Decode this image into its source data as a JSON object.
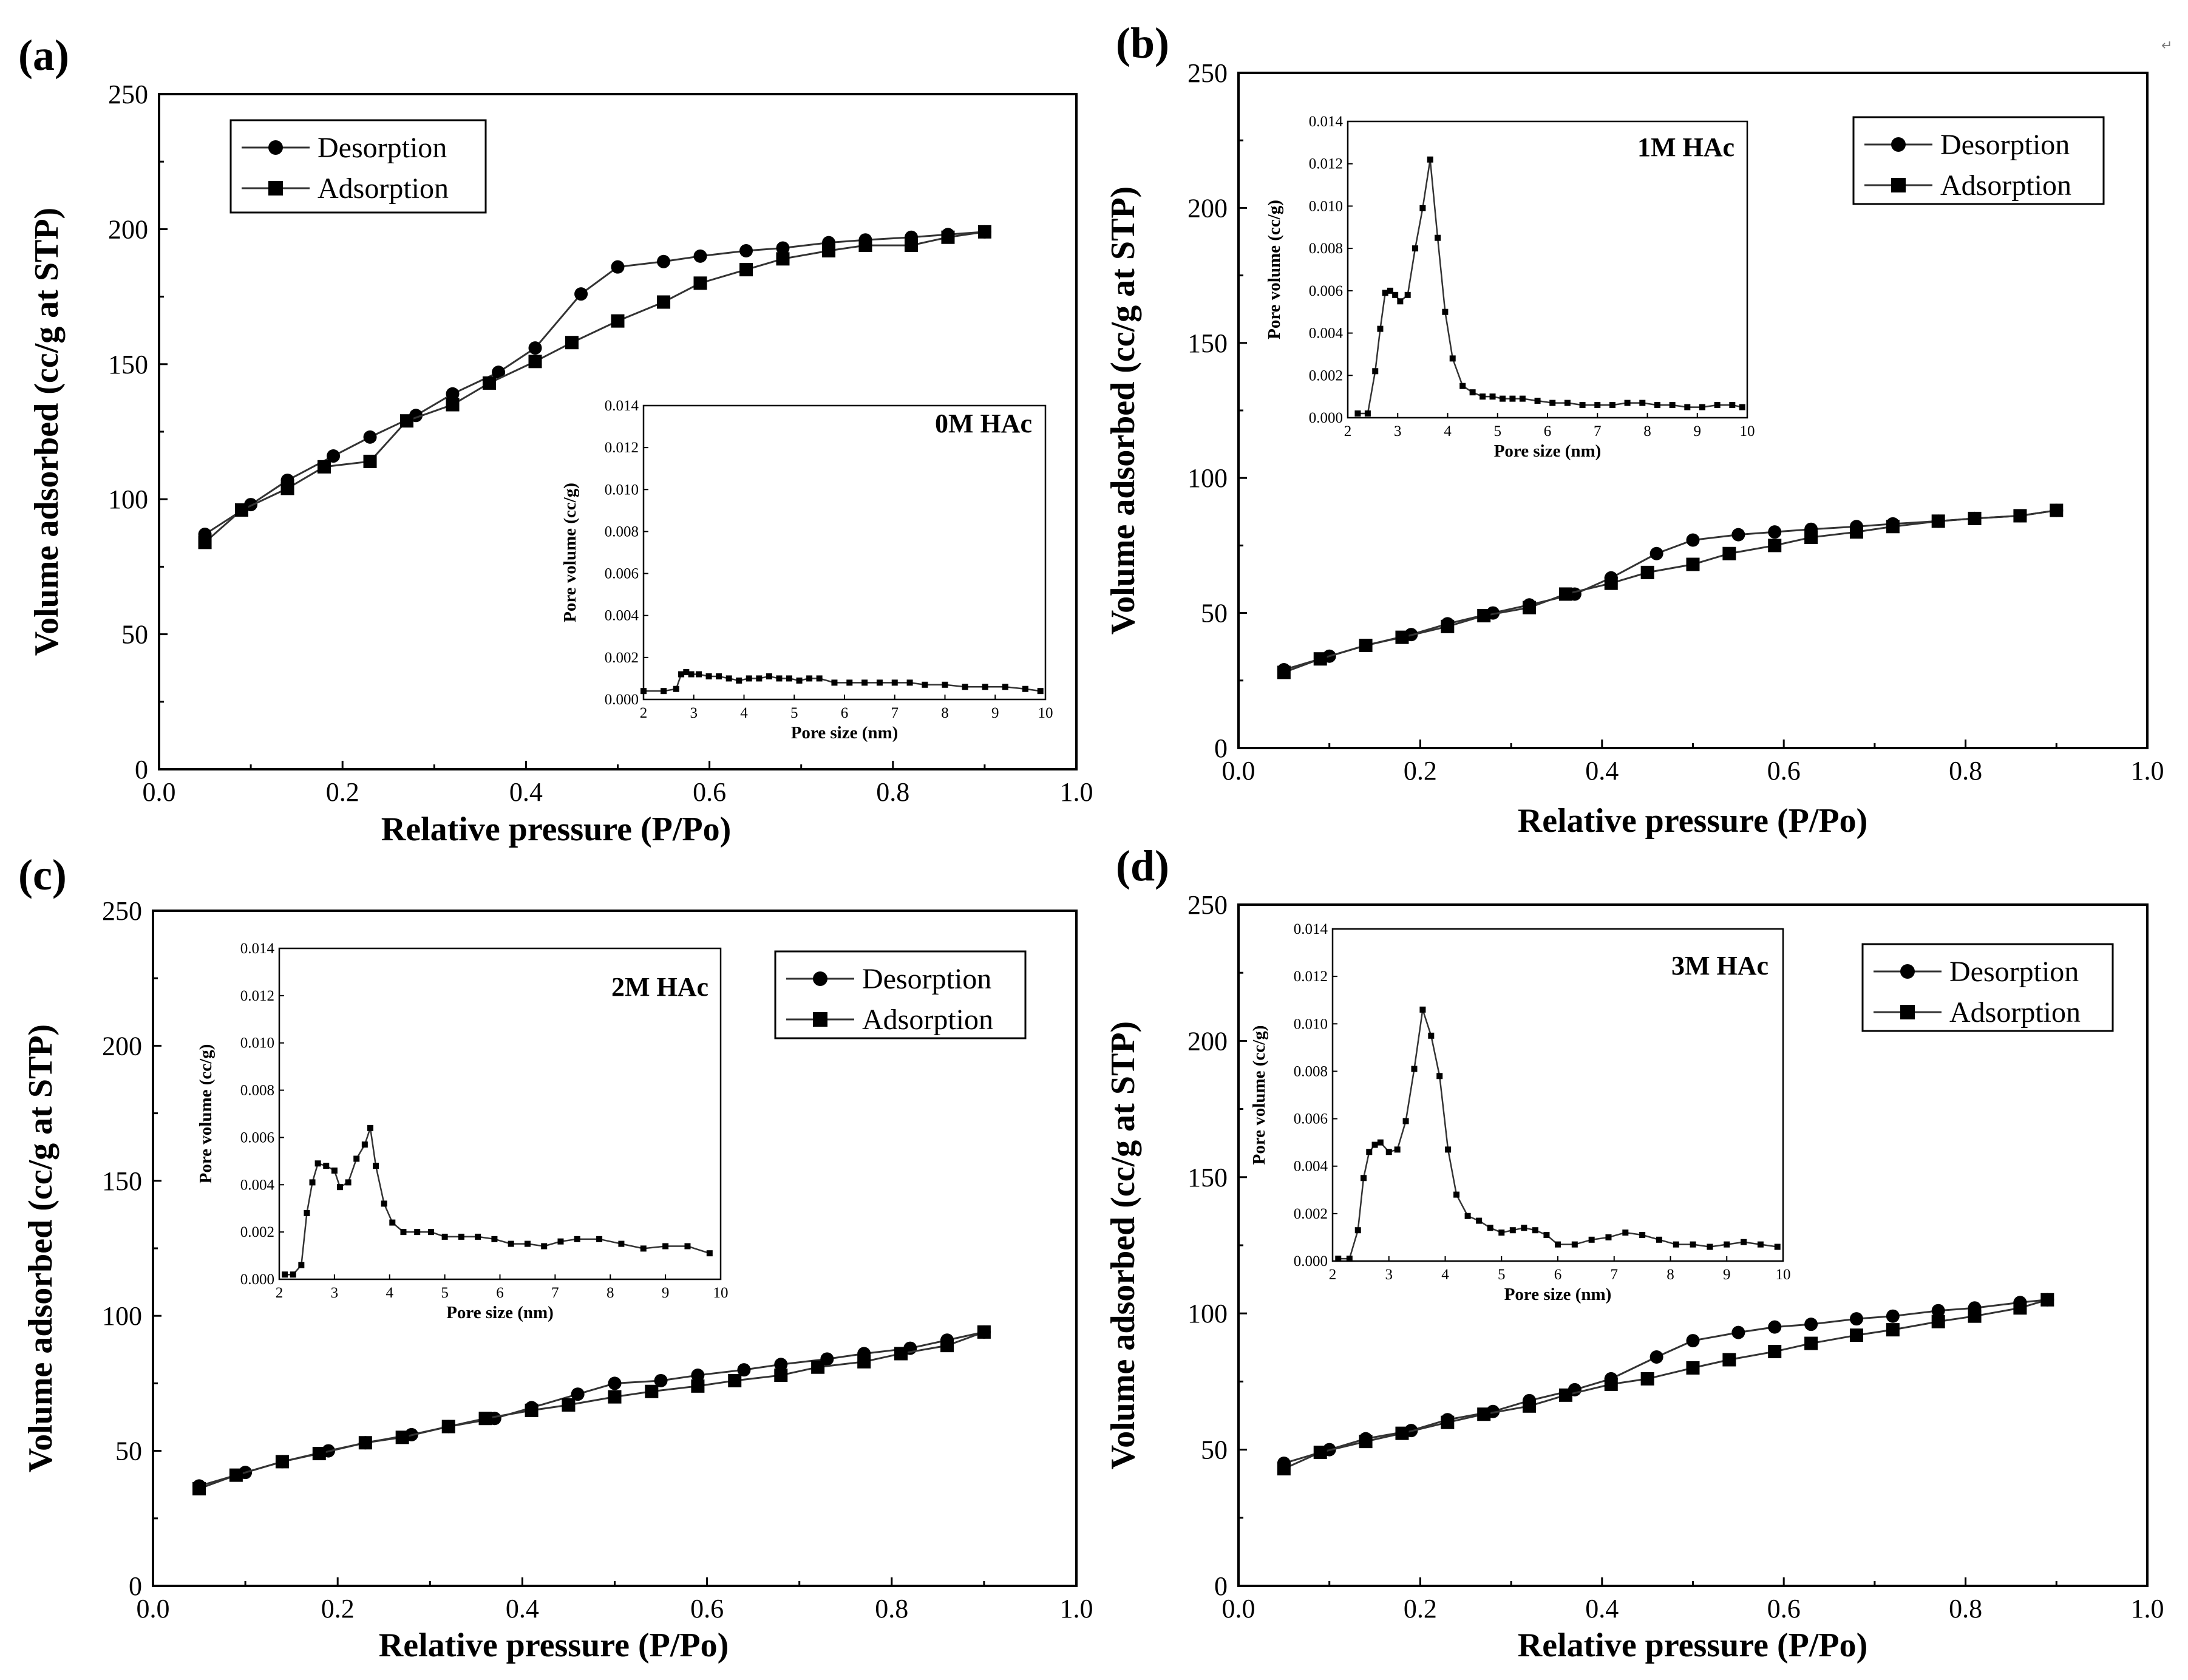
{
  "corner_mark": "↵",
  "chart_data": [
    {
      "type": "line",
      "panel_label": "(a)",
      "xlabel": "Relative pressure (P/Po)",
      "ylabel": "Volume adsorbed (cc/g at STP)",
      "xlim": [
        0.0,
        1.0
      ],
      "ylim": [
        0,
        250
      ],
      "x_ticks": [
        "0.0",
        "0.2",
        "0.4",
        "0.6",
        "0.8",
        "1.0"
      ],
      "y_ticks": [
        "0",
        "50",
        "100",
        "150",
        "200",
        "250"
      ],
      "legend_position": "top-left",
      "series": [
        {
          "name": "Desorption",
          "marker": "circle",
          "x": [
            0.05,
            0.1,
            0.14,
            0.19,
            0.23,
            0.28,
            0.32,
            0.37,
            0.41,
            0.46,
            0.5,
            0.55,
            0.59,
            0.64,
            0.68,
            0.73,
            0.77,
            0.82,
            0.86,
            0.9
          ],
          "y": [
            87,
            98,
            107,
            116,
            123,
            131,
            139,
            147,
            156,
            176,
            186,
            188,
            190,
            192,
            193,
            195,
            196,
            197,
            198,
            199
          ]
        },
        {
          "name": "Adsorption",
          "marker": "square",
          "x": [
            0.05,
            0.09,
            0.14,
            0.18,
            0.23,
            0.27,
            0.32,
            0.36,
            0.41,
            0.45,
            0.5,
            0.55,
            0.59,
            0.64,
            0.68,
            0.73,
            0.77,
            0.82,
            0.86,
            0.9
          ],
          "y": [
            84,
            96,
            104,
            112,
            114,
            129,
            135,
            143,
            151,
            158,
            166,
            173,
            180,
            185,
            189,
            192,
            194,
            194,
            197,
            199
          ]
        }
      ],
      "inset": {
        "label": "0M HAc",
        "xlabel": "Pore size (nm)",
        "ylabel": "Pore volume (cc/g)",
        "xlim": [
          2,
          10
        ],
        "ylim": [
          0,
          0.014
        ],
        "x_ticks": [
          "2",
          "3",
          "4",
          "5",
          "6",
          "7",
          "8",
          "9",
          "10"
        ],
        "y_ticks": [
          "0.000",
          "0.002",
          "0.004",
          "0.006",
          "0.008",
          "0.010",
          "0.012",
          "0.014"
        ],
        "x": [
          2.0,
          2.4,
          2.65,
          2.75,
          2.85,
          2.95,
          3.1,
          3.3,
          3.5,
          3.7,
          3.9,
          4.1,
          4.3,
          4.5,
          4.7,
          4.9,
          5.1,
          5.3,
          5.5,
          5.8,
          6.1,
          6.4,
          6.7,
          7.0,
          7.3,
          7.6,
          8.0,
          8.4,
          8.8,
          9.2,
          9.6,
          9.9
        ],
        "y": [
          0.0004,
          0.0004,
          0.0005,
          0.0012,
          0.0013,
          0.0012,
          0.0012,
          0.0011,
          0.0011,
          0.001,
          0.0009,
          0.001,
          0.001,
          0.0011,
          0.001,
          0.001,
          0.0009,
          0.001,
          0.001,
          0.0008,
          0.0008,
          0.0008,
          0.0008,
          0.0008,
          0.0008,
          0.0007,
          0.0007,
          0.0006,
          0.0006,
          0.0006,
          0.0005,
          0.0004
        ]
      }
    },
    {
      "type": "line",
      "panel_label": "(b)",
      "xlabel": "Relative pressure (P/Po)",
      "ylabel": "Volume adsorbed (cc/g at STP)",
      "xlim": [
        0.0,
        1.0
      ],
      "ylim": [
        0,
        250
      ],
      "x_ticks": [
        "0.0",
        "0.2",
        "0.4",
        "0.6",
        "0.8",
        "1.0"
      ],
      "y_ticks": [
        "0",
        "50",
        "100",
        "150",
        "200",
        "250"
      ],
      "legend_position": "top-right",
      "series": [
        {
          "name": "Desorption",
          "marker": "circle",
          "x": [
            0.05,
            0.1,
            0.14,
            0.19,
            0.23,
            0.28,
            0.32,
            0.37,
            0.41,
            0.46,
            0.5,
            0.55,
            0.59,
            0.63,
            0.68,
            0.72,
            0.77,
            0.81,
            0.86,
            0.9
          ],
          "y": [
            29,
            34,
            38,
            42,
            46,
            50,
            53,
            57,
            63,
            72,
            77,
            79,
            80,
            81,
            82,
            83,
            84,
            85,
            86,
            88
          ]
        },
        {
          "name": "Adsorption",
          "marker": "square",
          "x": [
            0.05,
            0.09,
            0.14,
            0.18,
            0.23,
            0.27,
            0.32,
            0.36,
            0.41,
            0.45,
            0.5,
            0.54,
            0.59,
            0.63,
            0.68,
            0.72,
            0.77,
            0.81,
            0.86,
            0.9
          ],
          "y": [
            28,
            33,
            38,
            41,
            45,
            49,
            52,
            57,
            61,
            65,
            68,
            72,
            75,
            78,
            80,
            82,
            84,
            85,
            86,
            88
          ]
        }
      ],
      "inset": {
        "label": "1M HAc",
        "xlabel": "Pore size (nm)",
        "ylabel": "Pore volume (cc/g)",
        "xlim": [
          2,
          10
        ],
        "ylim": [
          0,
          0.014
        ],
        "x_ticks": [
          "2",
          "3",
          "4",
          "5",
          "6",
          "7",
          "8",
          "9",
          "10"
        ],
        "y_ticks": [
          "0.000",
          "0.002",
          "0.004",
          "0.006",
          "0.008",
          "0.010",
          "0.012",
          "0.014"
        ],
        "x": [
          2.2,
          2.4,
          2.55,
          2.65,
          2.75,
          2.85,
          2.95,
          3.05,
          3.2,
          3.35,
          3.5,
          3.65,
          3.8,
          3.95,
          4.1,
          4.3,
          4.5,
          4.7,
          4.9,
          5.1,
          5.3,
          5.5,
          5.8,
          6.1,
          6.4,
          6.7,
          7.0,
          7.3,
          7.6,
          7.9,
          8.2,
          8.5,
          8.8,
          9.1,
          9.4,
          9.7,
          9.9
        ],
        "y": [
          0.0002,
          0.0002,
          0.0022,
          0.0042,
          0.0059,
          0.006,
          0.0058,
          0.0055,
          0.0058,
          0.008,
          0.0099,
          0.0122,
          0.0085,
          0.005,
          0.0028,
          0.0015,
          0.0012,
          0.001,
          0.001,
          0.0009,
          0.0009,
          0.0009,
          0.0008,
          0.0007,
          0.0007,
          0.0006,
          0.0006,
          0.0006,
          0.0007,
          0.0007,
          0.0006,
          0.0006,
          0.0005,
          0.0005,
          0.0006,
          0.0006,
          0.0005
        ]
      }
    },
    {
      "type": "line",
      "panel_label": "(c)",
      "xlabel": "Relative pressure (P/Po)",
      "ylabel": "Volume adsorbed (cc/g at STP)",
      "xlim": [
        0.0,
        1.0
      ],
      "ylim": [
        0,
        250
      ],
      "x_ticks": [
        "0.0",
        "0.2",
        "0.4",
        "0.6",
        "0.8",
        "1.0"
      ],
      "y_ticks": [
        "0",
        "50",
        "100",
        "150",
        "200",
        "250"
      ],
      "legend_position": "top-right",
      "series": [
        {
          "name": "Desorption",
          "marker": "circle",
          "x": [
            0.05,
            0.1,
            0.14,
            0.19,
            0.23,
            0.28,
            0.32,
            0.37,
            0.41,
            0.46,
            0.5,
            0.55,
            0.59,
            0.64,
            0.68,
            0.73,
            0.77,
            0.82,
            0.86,
            0.9
          ],
          "y": [
            37,
            42,
            46,
            50,
            53,
            56,
            59,
            62,
            66,
            71,
            75,
            76,
            78,
            80,
            82,
            84,
            86,
            88,
            91,
            94
          ]
        },
        {
          "name": "Adsorption",
          "marker": "square",
          "x": [
            0.05,
            0.09,
            0.14,
            0.18,
            0.23,
            0.27,
            0.32,
            0.36,
            0.41,
            0.45,
            0.5,
            0.54,
            0.59,
            0.63,
            0.68,
            0.72,
            0.77,
            0.81,
            0.86,
            0.9
          ],
          "y": [
            36,
            41,
            46,
            49,
            53,
            55,
            59,
            62,
            65,
            67,
            70,
            72,
            74,
            76,
            78,
            81,
            83,
            86,
            89,
            94
          ]
        }
      ],
      "inset": {
        "label": "2M HAc",
        "xlabel": "Pore size (nm)",
        "ylabel": "Pore volume (cc/g)",
        "xlim": [
          2,
          10
        ],
        "ylim": [
          0,
          0.014
        ],
        "x_ticks": [
          "2",
          "3",
          "4",
          "5",
          "6",
          "7",
          "8",
          "9",
          "10"
        ],
        "y_ticks": [
          "0.000",
          "0.002",
          "0.004",
          "0.006",
          "0.008",
          "0.010",
          "0.012",
          "0.014"
        ],
        "x": [
          2.1,
          2.25,
          2.4,
          2.5,
          2.6,
          2.7,
          2.85,
          3.0,
          3.1,
          3.25,
          3.4,
          3.55,
          3.65,
          3.75,
          3.9,
          4.05,
          4.25,
          4.5,
          4.75,
          5.0,
          5.3,
          5.6,
          5.9,
          6.2,
          6.5,
          6.8,
          7.1,
          7.4,
          7.8,
          8.2,
          8.6,
          9.0,
          9.4,
          9.8
        ],
        "y": [
          0.0002,
          0.0002,
          0.0006,
          0.0028,
          0.0041,
          0.0049,
          0.0048,
          0.0046,
          0.0039,
          0.0041,
          0.0051,
          0.0057,
          0.0064,
          0.0048,
          0.0032,
          0.0024,
          0.002,
          0.002,
          0.002,
          0.0018,
          0.0018,
          0.0018,
          0.0017,
          0.0015,
          0.0015,
          0.0014,
          0.0016,
          0.0017,
          0.0017,
          0.0015,
          0.0013,
          0.0014,
          0.0014,
          0.0011
        ]
      }
    },
    {
      "type": "line",
      "panel_label": "(d)",
      "xlabel": "Relative pressure (P/Po)",
      "ylabel": "Volume adsorbed (cc/g at STP)",
      "xlim": [
        0.0,
        1.0
      ],
      "ylim": [
        0,
        250
      ],
      "x_ticks": [
        "0.0",
        "0.2",
        "0.4",
        "0.6",
        "0.8",
        "1.0"
      ],
      "y_ticks": [
        "0",
        "50",
        "100",
        "150",
        "200",
        "250"
      ],
      "legend_position": "top-right",
      "series": [
        {
          "name": "Desorption",
          "marker": "circle",
          "x": [
            0.05,
            0.1,
            0.14,
            0.19,
            0.23,
            0.28,
            0.32,
            0.37,
            0.41,
            0.46,
            0.5,
            0.55,
            0.59,
            0.63,
            0.68,
            0.72,
            0.77,
            0.81,
            0.86,
            0.89
          ],
          "y": [
            45,
            50,
            54,
            57,
            61,
            64,
            68,
            72,
            76,
            84,
            90,
            93,
            95,
            96,
            98,
            99,
            101,
            102,
            104,
            105
          ]
        },
        {
          "name": "Adsorption",
          "marker": "square",
          "x": [
            0.05,
            0.09,
            0.14,
            0.18,
            0.23,
            0.27,
            0.32,
            0.36,
            0.41,
            0.45,
            0.5,
            0.54,
            0.59,
            0.63,
            0.68,
            0.72,
            0.77,
            0.81,
            0.86,
            0.89
          ],
          "y": [
            43,
            49,
            53,
            56,
            60,
            63,
            66,
            70,
            74,
            76,
            80,
            83,
            86,
            89,
            92,
            94,
            97,
            99,
            102,
            105
          ]
        }
      ],
      "inset": {
        "label": "3M HAc",
        "xlabel": "Pore size (nm)",
        "ylabel": "Pore volume (cc/g)",
        "xlim": [
          2,
          10
        ],
        "ylim": [
          0,
          0.014
        ],
        "x_ticks": [
          "2",
          "3",
          "4",
          "5",
          "6",
          "7",
          "8",
          "9",
          "10"
        ],
        "y_ticks": [
          "0.000",
          "0.002",
          "0.004",
          "0.006",
          "0.008",
          "0.010",
          "0.012",
          "0.014"
        ],
        "x": [
          2.1,
          2.3,
          2.45,
          2.55,
          2.65,
          2.75,
          2.85,
          3.0,
          3.15,
          3.3,
          3.45,
          3.6,
          3.75,
          3.9,
          4.05,
          4.2,
          4.4,
          4.6,
          4.8,
          5.0,
          5.2,
          5.4,
          5.6,
          5.8,
          6.0,
          6.3,
          6.6,
          6.9,
          7.2,
          7.5,
          7.8,
          8.1,
          8.4,
          8.7,
          9.0,
          9.3,
          9.6,
          9.9
        ],
        "y": [
          0.0001,
          0.0001,
          0.0013,
          0.0035,
          0.0046,
          0.0049,
          0.005,
          0.0046,
          0.0047,
          0.0059,
          0.0081,
          0.0106,
          0.0095,
          0.0078,
          0.0047,
          0.0028,
          0.0019,
          0.0017,
          0.0014,
          0.0012,
          0.0013,
          0.0014,
          0.0013,
          0.0011,
          0.0007,
          0.0007,
          0.0009,
          0.001,
          0.0012,
          0.0011,
          0.0009,
          0.0007,
          0.0007,
          0.0006,
          0.0007,
          0.0008,
          0.0007,
          0.0006
        ]
      }
    }
  ]
}
